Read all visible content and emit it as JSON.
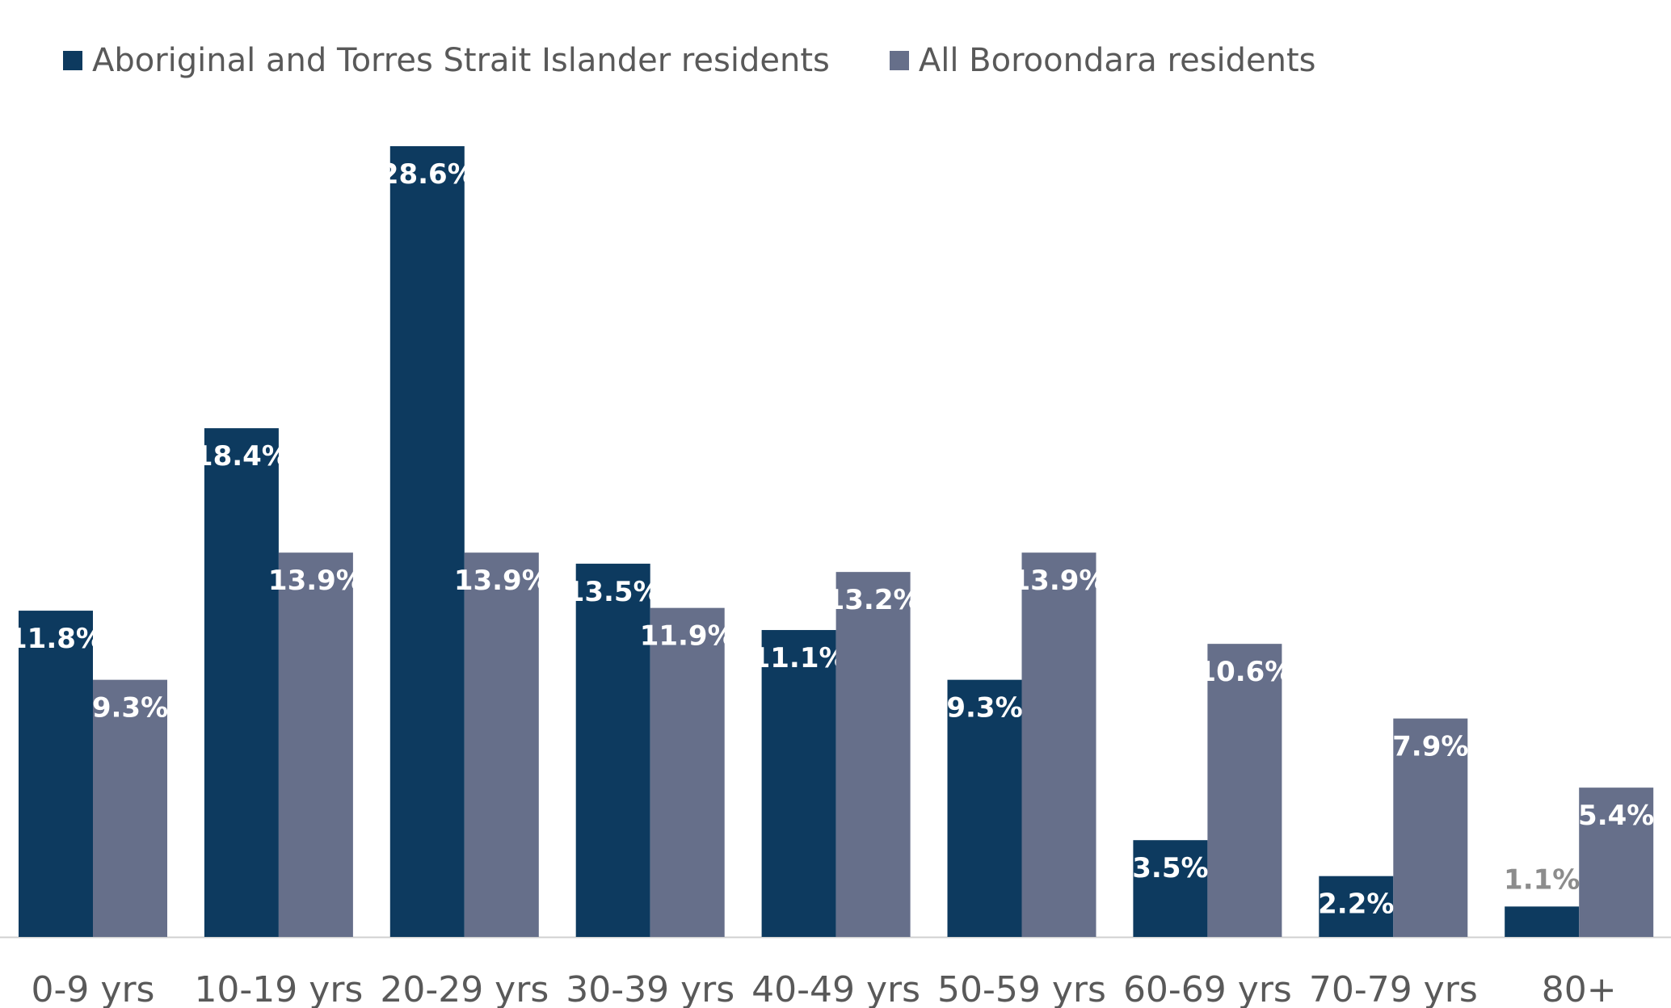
{
  "chart_data": {
    "type": "bar",
    "categories": [
      "0-9 yrs",
      "10-19 yrs",
      "20-29 yrs",
      "30-39 yrs",
      "40-49 yrs",
      "50-59 yrs",
      "60-69 yrs",
      "70-79 yrs",
      "80+"
    ],
    "series": [
      {
        "name": "Aboriginal and Torres Strait Islander residents",
        "color": "#0d3a5f",
        "values": [
          11.8,
          18.4,
          28.6,
          13.5,
          11.1,
          9.3,
          3.5,
          2.2,
          1.1
        ],
        "labels": [
          "11.8%",
          "18.4%",
          "28.6%",
          "13.5%",
          "11.1%",
          "9.3%",
          "3.5%",
          "2.2%",
          "1.1%"
        ]
      },
      {
        "name": "All Boroondara residents",
        "color": "#666f8a",
        "values": [
          9.3,
          13.9,
          13.9,
          11.9,
          13.2,
          13.9,
          10.6,
          7.9,
          5.4
        ],
        "labels": [
          "9.3%",
          "13.9%",
          "13.9%",
          "11.9%",
          "13.2%",
          "13.9%",
          "10.6%",
          "7.9%",
          "5.4%"
        ]
      }
    ],
    "ylim": [
      0,
      28.6
    ],
    "grid": false,
    "legend_position": "top-left",
    "label_color": "#ffffff",
    "outside_label_color": "#8c8c8c",
    "axis_color": "#d0d0d0"
  }
}
